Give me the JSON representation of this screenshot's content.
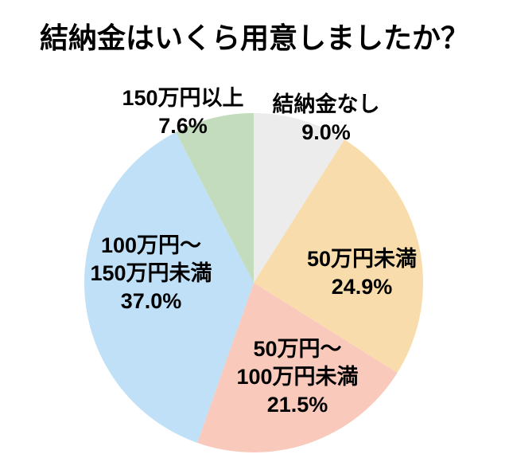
{
  "page": {
    "background": "#ffffff",
    "text_color": "#000000"
  },
  "chart_data": {
    "type": "pie",
    "title": "結納金はいくら用意しましたか？",
    "direction": "clockwise",
    "start_angle_deg": 0,
    "legend_position": "none",
    "labels_on_chart": true,
    "values_unit": "%",
    "total": 100.0,
    "slices": [
      {
        "key": "none",
        "label": "結納金なし",
        "value": 9.0,
        "display_label": "結納金なし\n9.0%",
        "color": "#ececec"
      },
      {
        "key": "under-50",
        "label": "50万円未満",
        "value": 24.9,
        "display_label": "50万円未満\n24.9%",
        "color": "#f9dcab"
      },
      {
        "key": "50-100",
        "label": "50万円〜100万円未満",
        "value": 21.5,
        "display_label": "50万円〜\n100万円未満\n21.5%",
        "color": "#f9c9bc"
      },
      {
        "key": "100-150",
        "label": "100万円〜150万円未満",
        "value": 37.0,
        "display_label": "100万円〜\n150万円未満\n37.0%",
        "color": "#bfe0f7"
      },
      {
        "key": "over-150",
        "label": "150万円以上",
        "value": 7.6,
        "display_label": "150万円以上\n7.6%",
        "color": "#c2dcbd"
      }
    ]
  }
}
